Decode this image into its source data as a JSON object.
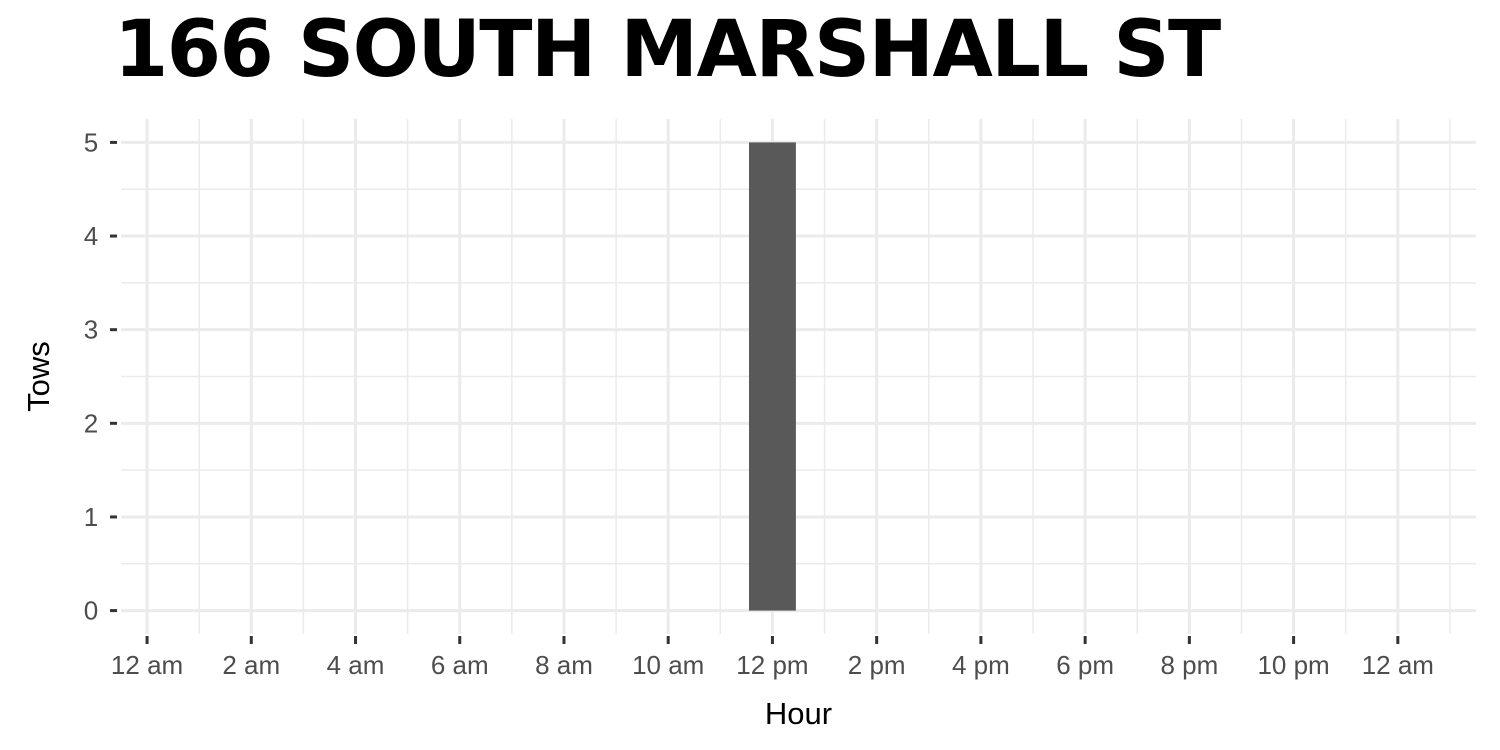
{
  "chart_data": {
    "type": "bar",
    "title": "166 SOUTH MARSHALL ST",
    "xlabel": "Hour",
    "ylabel": "Tows",
    "x_tick_labels": [
      "12 am",
      "2 am",
      "4 am",
      "6 am",
      "8 am",
      "10 am",
      "12 pm",
      "2 pm",
      "4 pm",
      "6 pm",
      "8 pm",
      "10 pm",
      "12 am"
    ],
    "x_tick_hours": [
      0,
      2,
      4,
      6,
      8,
      10,
      12,
      14,
      16,
      18,
      20,
      22,
      24
    ],
    "xlim": [
      -0.5,
      25.5
    ],
    "y_ticks": [
      0,
      1,
      2,
      3,
      4,
      5
    ],
    "ylim": [
      -0.25,
      5.25
    ],
    "grid": true,
    "bar_color": "#595959",
    "bars": [
      {
        "hour": 12,
        "value": 5
      }
    ]
  }
}
